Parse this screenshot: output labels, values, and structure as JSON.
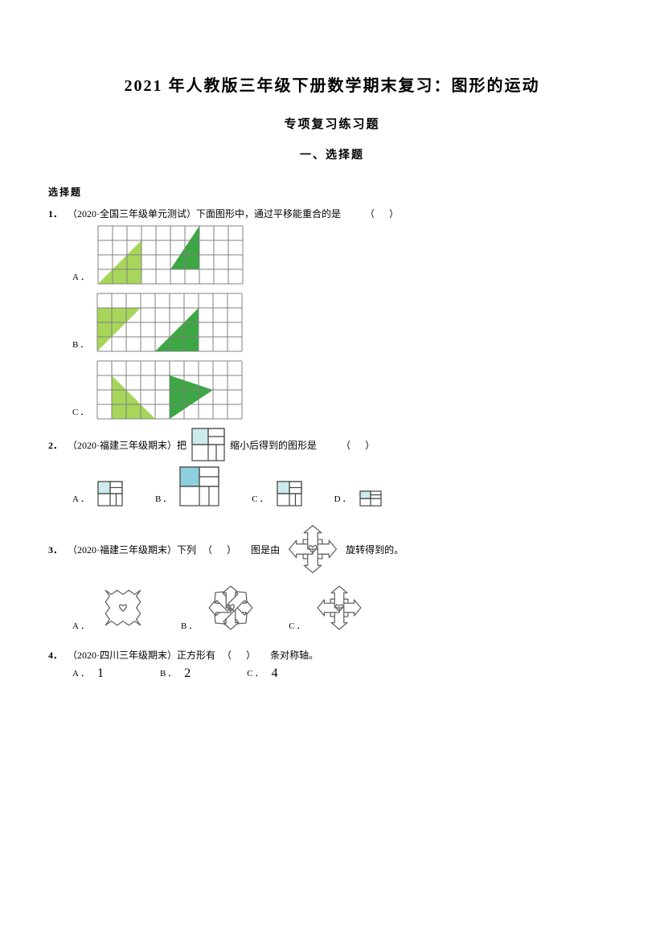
{
  "title": "2021 年人教版三年级下册数学期末复习：图形的运动",
  "subtitle": "专项复习练习题",
  "subtitle2": "一、选择题",
  "section_label": "选择题",
  "q1": {
    "num": "1．",
    "year": "（2020",
    "text": "·全国三年级单元测试）下面图形中，通过平移能重合的是",
    "paren_open": "（",
    "paren_close": "）",
    "options": {
      "A": "A．",
      "B": "B．",
      "C": "C．"
    },
    "grid": {
      "cols": 10,
      "rows": 4,
      "cell": 18,
      "stroke": "#808080",
      "stroke_w": 1,
      "tri_light": "#a7d65a",
      "tri_dark": "#3ca743",
      "A": {
        "light": [
          [
            0,
            4
          ],
          [
            3,
            4
          ],
          [
            3,
            1
          ]
        ],
        "dark": [
          [
            5,
            3
          ],
          [
            7,
            3
          ],
          [
            7,
            0
          ]
        ]
      },
      "B": {
        "light": [
          [
            0,
            1
          ],
          [
            3,
            1
          ],
          [
            0,
            4
          ]
        ],
        "dark": [
          [
            4,
            4
          ],
          [
            7,
            4
          ],
          [
            7,
            1
          ]
        ]
      },
      "C": {
        "light": [
          [
            1,
            1
          ],
          [
            1,
            4
          ],
          [
            4,
            4
          ]
        ],
        "dark": [
          [
            5,
            1
          ],
          [
            5,
            4
          ],
          [
            8,
            2
          ]
        ]
      }
    }
  },
  "q2": {
    "num": "2．",
    "year": "（2020",
    "text_a": "·福建三年级期末）把",
    "text_b": "缩小后得到的图形是",
    "paren_open": "（",
    "paren_close": "）",
    "options": {
      "A": "A．",
      "B": "B．",
      "C": "C．",
      "D": "D．"
    },
    "fig": {
      "stroke": "#444444",
      "stroke_w": 1.2,
      "fill_light": "#cdebec",
      "fill_med": "#8ecfdd",
      "ref_size": 40,
      "opt_size_small": 30,
      "opt_size_big": 48,
      "opt_size_tiny": 26
    }
  },
  "q3": {
    "num": "3．",
    "year": "（2020",
    "text_a": "·福建三年级期末）下列",
    "paren_open": "（",
    "paren_close": "）",
    "text_b": "图是由",
    "text_c": "旋转得到的。",
    "options": {
      "A": "A．",
      "B": "B．",
      "C": "C．"
    },
    "fig": {
      "stroke": "#666666",
      "stroke_w": 1.3,
      "ref": 70,
      "opt": 64
    }
  },
  "q4": {
    "num": "4．",
    "year": "（2020",
    "text": "·四川三年级期末）正方形有",
    "paren_open": "（",
    "paren_close": "）",
    "text_b": "条对称轴。",
    "options": {
      "A": "A．",
      "a_val": "1",
      "B": "B．",
      "b_val": "2",
      "C": "C．",
      "c_val": "4"
    }
  }
}
